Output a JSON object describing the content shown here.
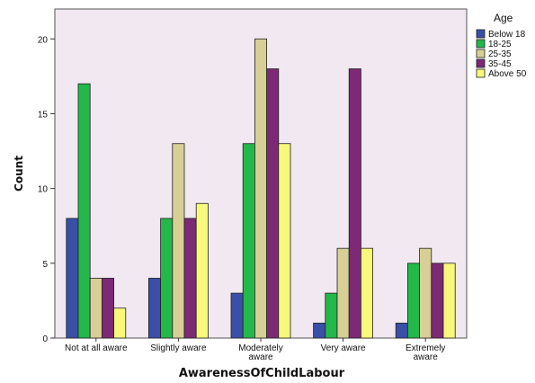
{
  "chart_data": {
    "type": "bar",
    "xlabel": "AwarenessOfChildLabour",
    "ylabel": "Count",
    "ylim": [
      0,
      22
    ],
    "yticks": [
      0,
      5,
      10,
      15,
      20
    ],
    "categories": [
      "Not at all aware",
      "Slightly aware",
      "Moderately aware",
      "Very aware",
      "Extremely aware"
    ],
    "category_lines": [
      [
        "Not at all aware"
      ],
      [
        "Slightly aware"
      ],
      [
        "Moderately",
        "aware"
      ],
      [
        "Very aware"
      ],
      [
        "Extremely",
        "aware"
      ]
    ],
    "legend_title": "Age",
    "legend_position": "right",
    "plot_background": "#f1e8f1",
    "series": [
      {
        "name": "Below 18",
        "color": "#3a4fa8",
        "values": [
          8,
          4,
          3,
          1,
          1
        ]
      },
      {
        "name": "18-25",
        "color": "#23b84a",
        "values": [
          17,
          8,
          13,
          3,
          5
        ]
      },
      {
        "name": "25-35",
        "color": "#d7cf96",
        "values": [
          4,
          13,
          20,
          6,
          6
        ]
      },
      {
        "name": "35-45",
        "color": "#7c2a75",
        "values": [
          4,
          8,
          18,
          18,
          5
        ]
      },
      {
        "name": "Above 50",
        "color": "#f8f87a",
        "values": [
          2,
          9,
          13,
          6,
          5
        ]
      }
    ],
    "grid": false
  }
}
